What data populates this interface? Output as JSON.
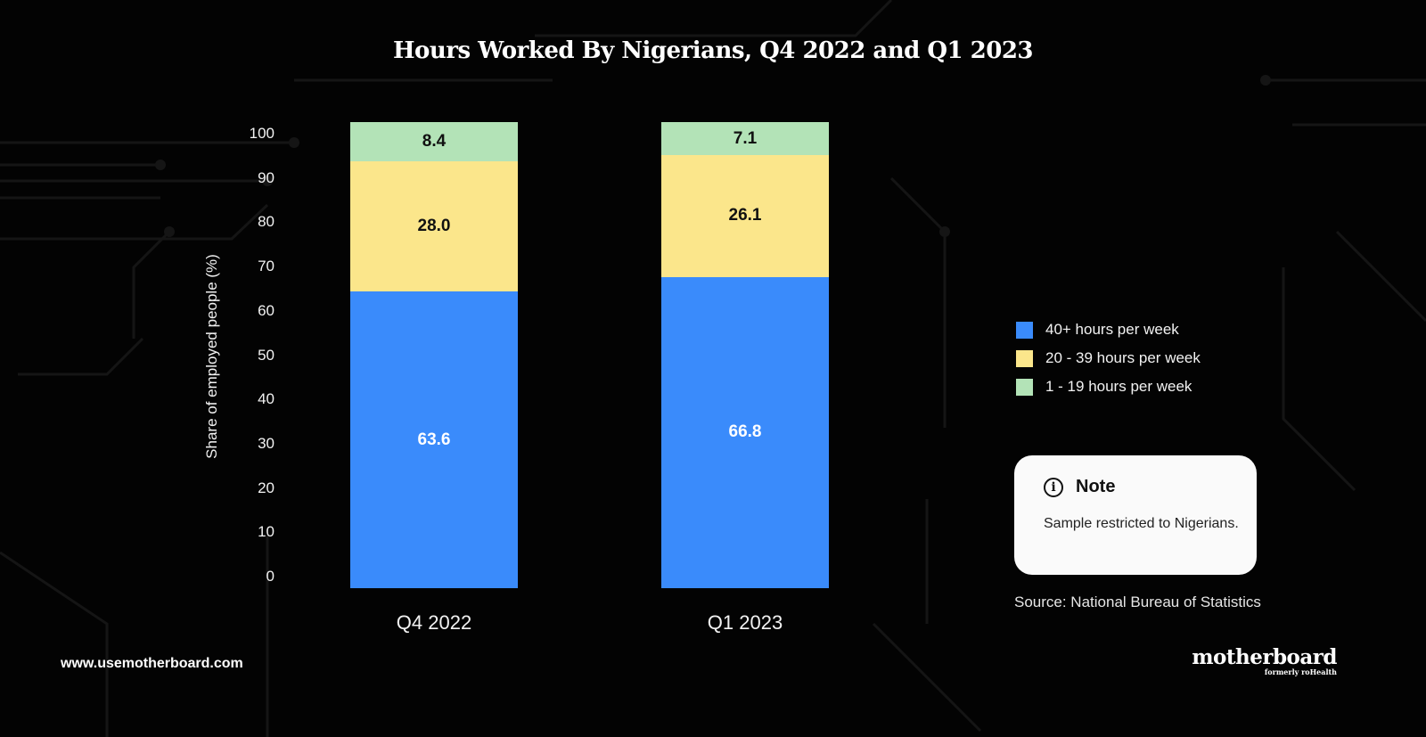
{
  "chart_data": {
    "type": "bar",
    "stacked": true,
    "title": "Hours Worked By Nigerians, Q4 2022 and Q1 2023",
    "xlabel": "",
    "ylabel": "Share of employed people (%)",
    "ylim": [
      0,
      100
    ],
    "yticks": [
      "0",
      "10",
      "20",
      "30",
      "40",
      "50",
      "60",
      "70",
      "80",
      "90",
      "100"
    ],
    "categories": [
      "Q4 2022",
      "Q1 2023"
    ],
    "series": [
      {
        "name": "40+ hours per week",
        "values": [
          63.6,
          66.8
        ],
        "labels": [
          "63.6",
          "66.8"
        ],
        "color": "#3a8bfb",
        "label_color": "#ffffff"
      },
      {
        "name": "20 - 39 hours per week",
        "values": [
          28.0,
          26.1
        ],
        "labels": [
          "28.0",
          "26.1"
        ],
        "color": "#fbe68b",
        "label_color": "#111111"
      },
      {
        "name": "1 - 19 hours per week",
        "values": [
          8.4,
          7.1
        ],
        "labels": [
          "8.4",
          "7.1"
        ],
        "color": "#b3e3b7",
        "label_color": "#111111"
      }
    ],
    "legend_position": "right",
    "grid": false
  },
  "note": {
    "icon": "info-icon",
    "title": "Note",
    "body": "Sample restricted to Nigerians."
  },
  "source": "Source: National Bureau of Statistics",
  "footer": {
    "url": "www.usemotherboard.com",
    "logo": "motherboard",
    "logo_sub": "formerly roHealth"
  },
  "colors": {
    "background": "#030303"
  }
}
